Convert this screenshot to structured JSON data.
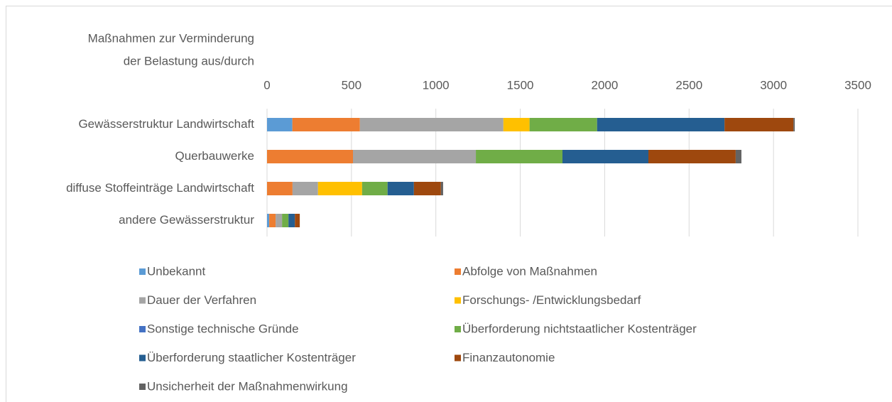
{
  "chart_data": {
    "type": "bar",
    "orientation": "horizontal",
    "stacked": true,
    "title": [
      "Maßnahmen zur Verminderung",
      "der Belastung aus/durch"
    ],
    "categories": [
      "Gewässerstruktur Landwirtschaft",
      "Querbauwerke",
      "diffuse Stoffeinträge Landwirtschaft",
      "andere Gewässerstruktur"
    ],
    "series": [
      {
        "name": "Unbekannt",
        "color": "#5b9bd5",
        "values": [
          150,
          0,
          0,
          13
        ]
      },
      {
        "name": "Abfolge von Maßnahmen",
        "color": "#ed7d31",
        "values": [
          400,
          509,
          151,
          38
        ]
      },
      {
        "name": "Dauer der Verfahren",
        "color": "#a5a5a5",
        "values": [
          850,
          728,
          151,
          38
        ]
      },
      {
        "name": "Forschungs- /Entwicklungsbedarf",
        "color": "#ffc000",
        "values": [
          155,
          0,
          261,
          0
        ]
      },
      {
        "name": "Sonstige technische Gründe",
        "color": "#4472c4",
        "values": [
          0,
          0,
          0,
          0
        ]
      },
      {
        "name": "Überforderung nichtstaatlicher Kostenträger",
        "color": "#70ad47",
        "values": [
          400,
          513,
          151,
          38
        ]
      },
      {
        "name": "Überforderung staatlicher Kostenträger",
        "color": "#255e91",
        "values": [
          755,
          509,
          156,
          38
        ]
      },
      {
        "name": "Finanzautonomie",
        "color": "#9e480e",
        "values": [
          408,
          517,
          160,
          29
        ]
      },
      {
        "name": "Unsicherheit der Maßnahmenwirkung",
        "color": "#636363",
        "values": [
          8,
          34,
          13,
          0
        ]
      }
    ],
    "xlim": [
      0,
      3500
    ],
    "xticks": [
      0,
      500,
      1000,
      1500,
      2000,
      2500,
      3000,
      3500
    ],
    "grid": true,
    "legend": "bottom"
  }
}
